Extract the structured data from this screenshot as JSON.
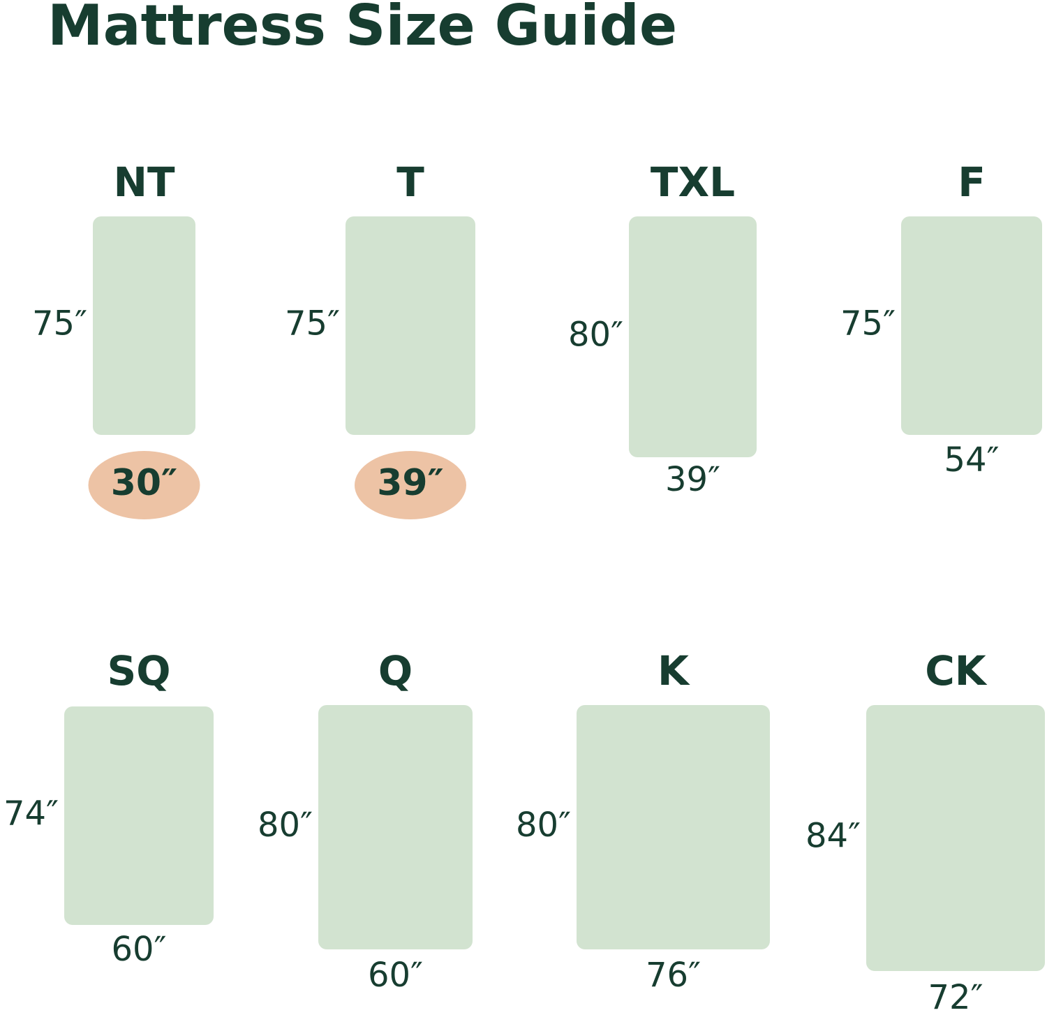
{
  "header": {
    "title": "Mattress Size Guide"
  },
  "sizes": [
    {
      "name": "NT",
      "length": "75″",
      "width": "30″",
      "highlight": true
    },
    {
      "name": "T",
      "length": "75″",
      "width": "39″",
      "highlight": true
    },
    {
      "name": "TXL",
      "length": "80″",
      "width": "39″",
      "highlight": false
    },
    {
      "name": "F",
      "length": "75″",
      "width": "54″",
      "highlight": false
    },
    {
      "name": "SQ",
      "length": "74″",
      "width": "60″",
      "highlight": false
    },
    {
      "name": "Q",
      "length": "80″",
      "width": "60″",
      "highlight": false
    },
    {
      "name": "K",
      "length": "80″",
      "width": "76″",
      "highlight": false
    },
    {
      "name": "CK",
      "length": "84″",
      "width": "72″",
      "highlight": false
    }
  ]
}
